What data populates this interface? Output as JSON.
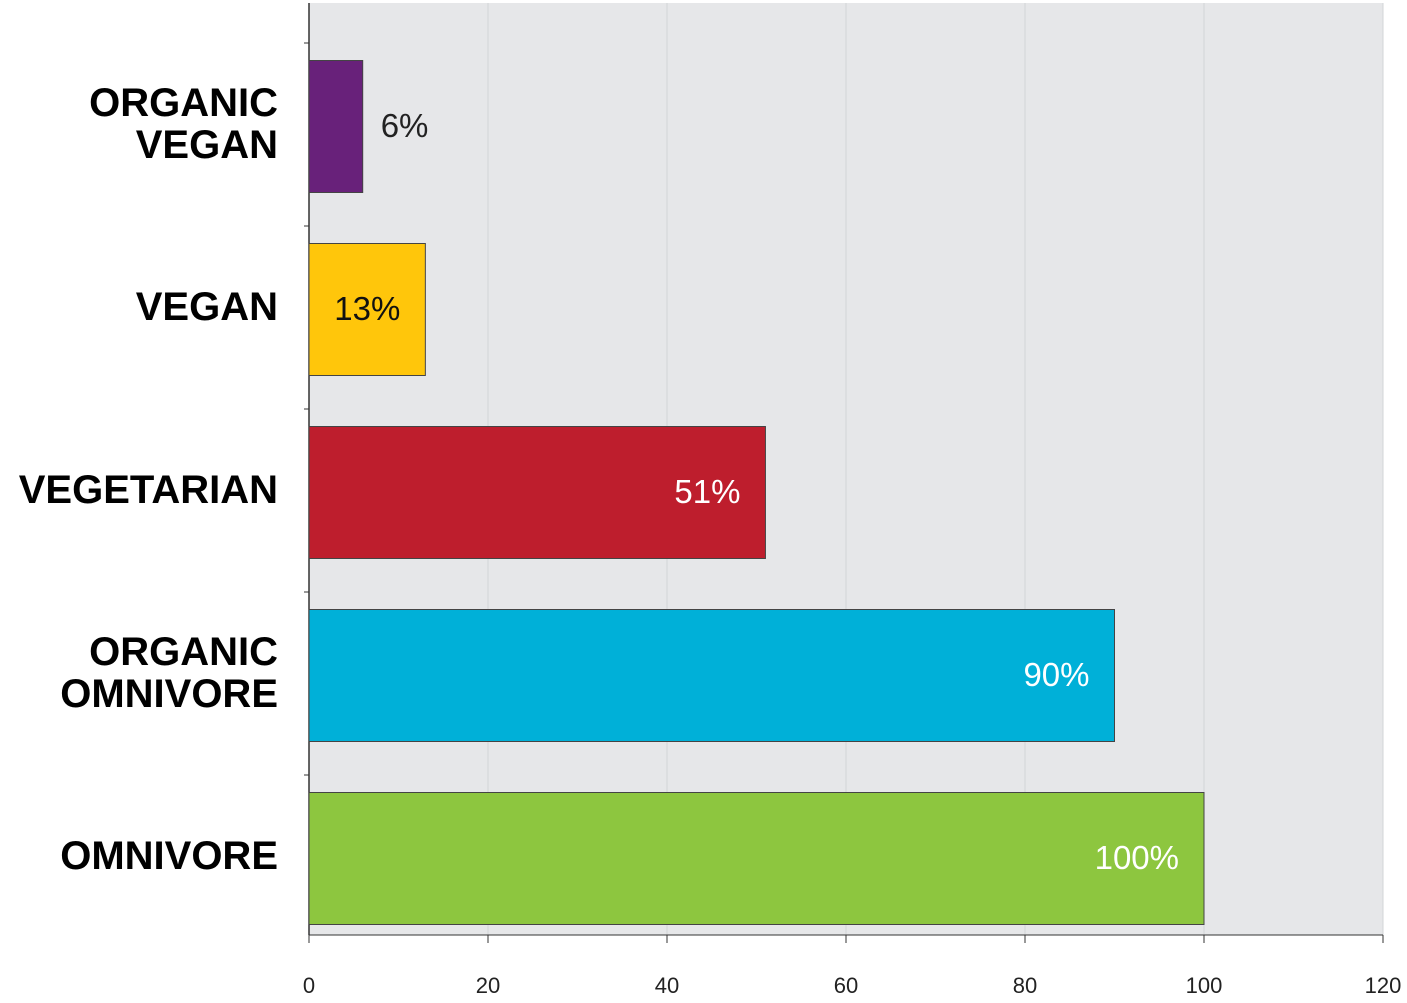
{
  "chart_data": {
    "type": "bar",
    "orientation": "horizontal",
    "categories": [
      [
        "ORGANIC",
        "VEGAN"
      ],
      [
        "VEGAN"
      ],
      [
        "VEGETARIAN"
      ],
      [
        "ORGANIC",
        "OMNIVORE"
      ],
      [
        "OMNIVORE"
      ]
    ],
    "values": [
      6,
      13,
      51,
      90,
      100
    ],
    "value_labels": [
      "6%",
      "13%",
      "51%",
      "90%",
      "100%"
    ],
    "colors": [
      "#68217a",
      "#ffc60b",
      "#be1e2d",
      "#00b0d8",
      "#8dc63f"
    ],
    "value_label_colors": [
      "#222222",
      "#111111",
      "#ffffff",
      "#ffffff",
      "#ffffff"
    ],
    "xlim": [
      0,
      120
    ],
    "xticks": [
      0,
      20,
      40,
      60,
      80,
      100,
      120
    ],
    "grid": true
  }
}
